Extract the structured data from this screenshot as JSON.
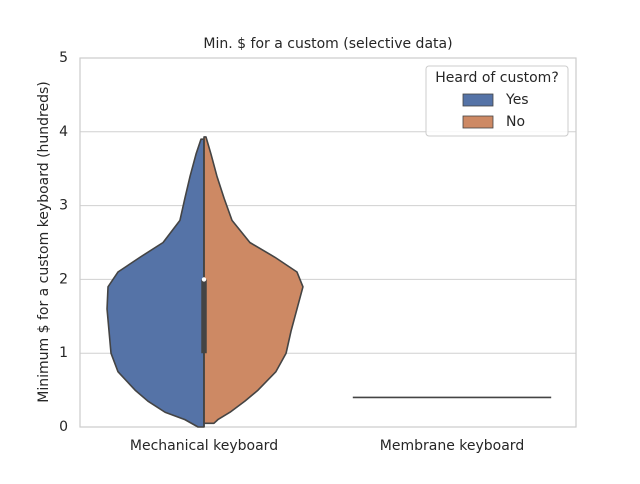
{
  "chart_data": {
    "type": "violin",
    "title": "Min. $ for a custom (selective data)",
    "y_label": "Minimum $ for a custom keyboard (hundreds)",
    "categories": [
      "Mechanical keyboard",
      "Membrane keyboard"
    ],
    "ylim": [
      0,
      5
    ],
    "yticks": [
      0,
      1,
      2,
      3,
      4,
      5
    ],
    "grid": true,
    "legend": {
      "title": "Heard of custom?",
      "loc": "upper right"
    },
    "series": [
      {
        "name": "Yes",
        "color": "#5573a7",
        "violins": [
          {
            "y": [
              0,
              0.1,
              0.2,
              0.35,
              0.5,
              0.75,
              1.0,
              1.3,
              1.6,
              1.9,
              2.1,
              2.3,
              2.5,
              2.8,
              3.1,
              3.4,
              3.7,
              3.9
            ],
            "density": [
              0.024,
              0.077,
              0.157,
              0.226,
              0.278,
              0.347,
              0.375,
              0.383,
              0.391,
              0.387,
              0.347,
              0.258,
              0.165,
              0.097,
              0.077,
              0.056,
              0.032,
              0.012
            ]
          },
          {
            "y": [
              0.4
            ],
            "density": [
              0.4
            ]
          }
        ]
      },
      {
        "name": "No",
        "color": "#cd8964",
        "violins": [
          {
            "y": [
              0.05,
              0.1,
              0.2,
              0.35,
              0.5,
              0.75,
              1.0,
              1.3,
              1.6,
              1.9,
              2.1,
              2.3,
              2.5,
              2.8,
              3.1,
              3.4,
              3.7,
              3.93
            ],
            "density": [
              0.04,
              0.056,
              0.105,
              0.165,
              0.218,
              0.29,
              0.331,
              0.351,
              0.375,
              0.399,
              0.375,
              0.286,
              0.185,
              0.113,
              0.081,
              0.052,
              0.028,
              0.008
            ]
          },
          {
            "y": [
              0.4
            ],
            "density": [
              0.4
            ]
          }
        ]
      }
    ],
    "box": [
      {
        "low": 0,
        "q1": 1.0,
        "median": 2.0,
        "q3": 2.0,
        "high": 3.9
      },
      {
        "low": 0.4,
        "q1": 0.4,
        "median": 0.4,
        "q3": 0.4,
        "high": 0.4
      }
    ]
  }
}
